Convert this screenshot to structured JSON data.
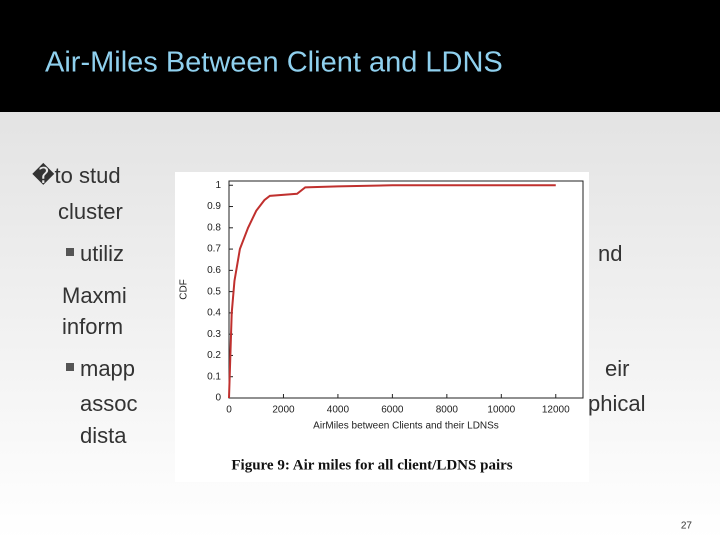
{
  "slide": {
    "title": "Air-Miles Between Client and LDNS",
    "text_fragments": [
      "�to stud",
      "cluster",
      "utiliz",
      "nd",
      "Maxmi",
      "inform",
      "mapp",
      "eir",
      "assoc",
      "phical",
      "dista"
    ],
    "page_number": "27"
  },
  "chart_data": {
    "type": "line",
    "x_label": "AirMiles between Clients and their LDNSs",
    "y_label": "CDF",
    "caption": "Figure 9:  Air miles for all client/LDNS pairs",
    "x": [
      0,
      50,
      100,
      200,
      400,
      700,
      1000,
      1300,
      1500,
      2500,
      2800,
      4000,
      6000,
      12000
    ],
    "values": [
      0,
      0.2,
      0.4,
      0.55,
      0.7,
      0.8,
      0.88,
      0.93,
      0.95,
      0.96,
      0.99,
      0.995,
      1,
      1
    ],
    "color": "#c0302e",
    "xlim": [
      0,
      13000
    ],
    "ylim": [
      0,
      1.02
    ],
    "xticks": [
      0,
      2000,
      4000,
      6000,
      8000,
      10000,
      12000
    ],
    "yticks": [
      0,
      0.1,
      0.2,
      0.3,
      0.4,
      0.5,
      0.6,
      0.7,
      0.8,
      0.9,
      1
    ]
  }
}
